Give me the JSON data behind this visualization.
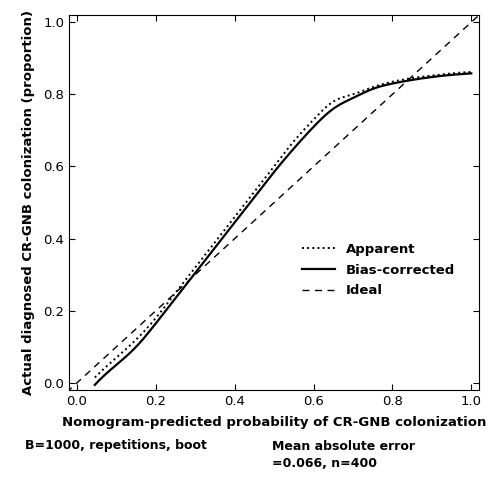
{
  "xlabel": "Nomogram-predicted probability of CR-GNB colonization",
  "ylabel": "Actual diagnosed CR-GNB colonization (proportion)",
  "xlim": [
    -0.02,
    1.02
  ],
  "ylim": [
    -0.02,
    1.02
  ],
  "xticks": [
    0.0,
    0.2,
    0.4,
    0.6,
    0.8,
    1.0
  ],
  "yticks": [
    0.0,
    0.2,
    0.4,
    0.6,
    0.8,
    1.0
  ],
  "bottom_left_text": "B=1000, repetitions, boot",
  "bottom_right_text1": "Mean absolute error",
  "bottom_right_text2": "=0.066, n=400",
  "legend_labels": [
    "Apparent",
    "Bias-corrected",
    "Ideal"
  ],
  "background_color": "#ffffff",
  "curve_color": "#000000",
  "ideal_color": "#000000",
  "apparent_x": [
    0.05,
    0.1,
    0.15,
    0.2,
    0.25,
    0.3,
    0.35,
    0.4,
    0.45,
    0.5,
    0.55,
    0.6,
    0.65,
    0.7,
    0.75,
    0.8,
    0.85,
    0.9,
    0.95,
    1.0
  ],
  "apparent_y": [
    0.02,
    0.07,
    0.12,
    0.18,
    0.25,
    0.32,
    0.39,
    0.46,
    0.53,
    0.6,
    0.67,
    0.73,
    0.78,
    0.8,
    0.82,
    0.835,
    0.845,
    0.852,
    0.858,
    0.862
  ],
  "biascorr_x": [
    0.05,
    0.1,
    0.15,
    0.2,
    0.25,
    0.3,
    0.35,
    0.4,
    0.45,
    0.5,
    0.55,
    0.6,
    0.65,
    0.7,
    0.75,
    0.8,
    0.85,
    0.9,
    0.95,
    1.0
  ],
  "biascorr_y": [
    0.0,
    0.05,
    0.1,
    0.165,
    0.235,
    0.305,
    0.375,
    0.445,
    0.515,
    0.585,
    0.65,
    0.71,
    0.76,
    0.79,
    0.815,
    0.83,
    0.84,
    0.848,
    0.854,
    0.858
  ]
}
